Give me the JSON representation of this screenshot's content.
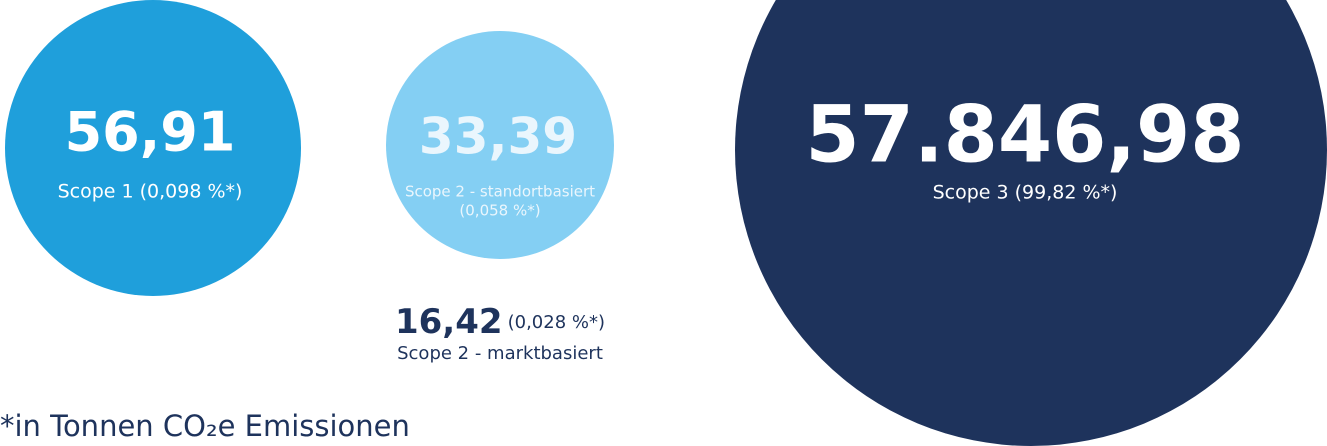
{
  "scope1": {
    "value": "56,91",
    "label": "Scope 1 (0,098 %*)"
  },
  "scope2_location": {
    "value": "33,39",
    "label_line1": "Scope 2 - standortbasiert",
    "label_line2": "(0,058 %*)"
  },
  "scope2_market": {
    "value": "16,42",
    "share": "(0,028 %*)",
    "label": "Scope 2 - marktbasiert"
  },
  "scope3": {
    "value": "57.846,98",
    "label": "Scope 3 (99,82 %*)"
  },
  "footnote": "*in Tonnen CO₂e Emissionen"
}
